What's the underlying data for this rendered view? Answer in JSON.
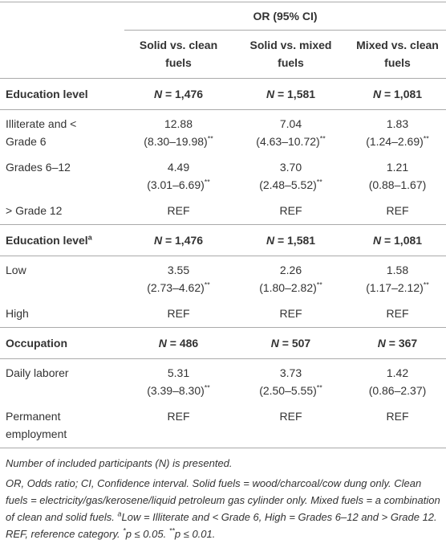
{
  "header": {
    "group": "OR (95% CI)",
    "columns": [
      "Solid vs. clean fuels",
      "Solid vs. mixed fuels",
      "Mixed vs. clean fuels"
    ]
  },
  "sections": [
    {
      "label": "Education level",
      "counts": [
        "N = 1,476",
        "N = 1,581",
        "N = 1,081"
      ],
      "rows": [
        {
          "label": "Illiterate and < Grade 6",
          "cells": [
            {
              "or": "12.88",
              "ci": "(8.30–19.98)",
              "sig": "**"
            },
            {
              "or": "7.04",
              "ci": "(4.63–10.72)",
              "sig": "**"
            },
            {
              "or": "1.83",
              "ci": "(1.24–2.69)",
              "sig": "**"
            }
          ]
        },
        {
          "label": "Grades 6–12",
          "cells": [
            {
              "or": "4.49",
              "ci": "(3.01–6.69)",
              "sig": "**"
            },
            {
              "or": "3.70",
              "ci": "(2.48–5.52)",
              "sig": "**"
            },
            {
              "or": "1.21",
              "ci": "(0.88–1.67)"
            }
          ]
        },
        {
          "label": "> Grade 12",
          "cells": [
            {
              "or": "REF"
            },
            {
              "or": "REF"
            },
            {
              "or": "REF"
            }
          ]
        }
      ]
    },
    {
      "label": "Education level",
      "sup": "a",
      "counts": [
        "N = 1,476",
        "N = 1,581",
        "N = 1,081"
      ],
      "rows": [
        {
          "label": "Low",
          "cells": [
            {
              "or": "3.55",
              "ci": "(2.73–4.62)",
              "sig": "**"
            },
            {
              "or": "2.26",
              "ci": "(1.80–2.82)",
              "sig": "**"
            },
            {
              "or": "1.58",
              "ci": "(1.17–2.12)",
              "sig": "**"
            }
          ]
        },
        {
          "label": "High",
          "cells": [
            {
              "or": "REF"
            },
            {
              "or": "REF"
            },
            {
              "or": "REF"
            }
          ]
        }
      ]
    },
    {
      "label": "Occupation",
      "counts": [
        "N = 486",
        "N = 507",
        "N = 367"
      ],
      "rows": [
        {
          "label": "Daily laborer",
          "cells": [
            {
              "or": "5.31",
              "ci": "(3.39–8.30)",
              "sig": "**"
            },
            {
              "or": "3.73",
              "ci": "(2.50–5.55)",
              "sig": "**"
            },
            {
              "or": "1.42",
              "ci": "(0.86–2.37)"
            }
          ]
        },
        {
          "label": "Permanent employment",
          "cells": [
            {
              "or": "REF"
            },
            {
              "or": "REF"
            },
            {
              "or": "REF"
            }
          ]
        }
      ]
    }
  ],
  "footnotes": {
    "note": "Number of included participants (N) is presented.",
    "parts": [
      {
        "text": "OR, Odds ratio; CI, Confidence interval. Solid fuels = wood/charcoal/cow dung only. Clean fuels = electricity/gas/kerosene/liquid petroleum gas cylinder only. Mixed fuels = a combination of clean and solid fuels. "
      },
      {
        "sup": "a"
      },
      {
        "text": "Low = Illiterate and < Grade 6, High = Grades 6–12 and > Grade 12. REF, reference category. "
      },
      {
        "sup": "*"
      },
      {
        "text": "p ≤ 0.05. "
      },
      {
        "sup": "**"
      },
      {
        "text": "p ≤ 0.01."
      }
    ]
  }
}
